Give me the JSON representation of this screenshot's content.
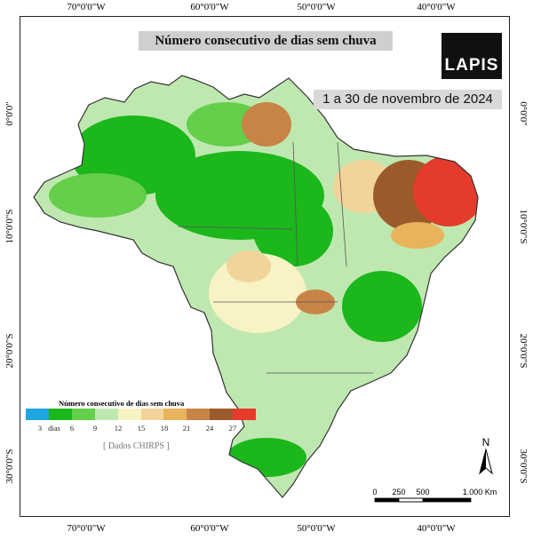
{
  "title": "Número consecutivo de dias sem chuva",
  "period": "1 a 30 de novembro de 2024",
  "logo_text": "LAPIS",
  "axis": {
    "lon_ticks": [
      "70°0'0\"W",
      "60°0'0\"W",
      "50°0'0\"W",
      "40°0'0\"W"
    ],
    "lat_ticks": [
      "0°0'0\"",
      "10°0'0\"S",
      "20°0'0\"S",
      "30°0'0\"S"
    ]
  },
  "legend": {
    "title": "Número consecutivo de dias sem chuva",
    "unit": "dias",
    "labels": [
      "3",
      "6",
      "9",
      "12",
      "15",
      "18",
      "21",
      "24",
      "27"
    ],
    "colors": [
      "#1ea7e0",
      "#1bb71b",
      "#63cf4a",
      "#bfe8b0",
      "#f8f3c4",
      "#f2d49a",
      "#e8b35a",
      "#c88446",
      "#9b5a2a",
      "#e53b2b"
    ]
  },
  "source": "[ Dados CHIRPS ]",
  "north_label": "N",
  "scale": {
    "labels": [
      "0",
      "250",
      "500",
      "1.000 Km"
    ]
  }
}
